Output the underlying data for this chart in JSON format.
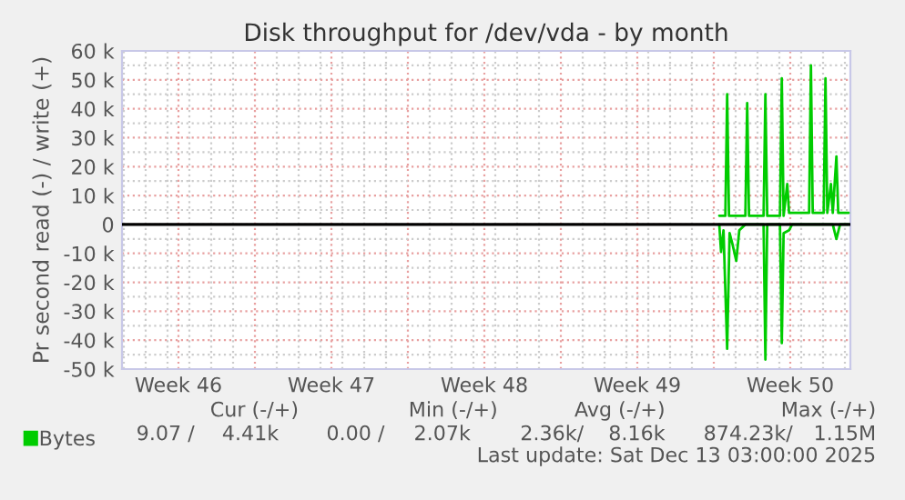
{
  "chart_data": {
    "type": "line",
    "title": "Disk throughput for /dev/vda - by month",
    "ylabel": "Pr second read (-) / write (+)",
    "series": [
      {
        "name": "Bytes",
        "color": "#00cc00",
        "x": [
          "2025-12-08T06:00",
          "2025-12-08T12:40",
          "2025-12-08T14:40",
          "2025-12-08T16:40",
          "2025-12-09T10:40",
          "2025-12-09T12:40",
          "2025-12-09T14:40",
          "2025-12-10T06:40",
          "2025-12-10T08:40",
          "2025-12-10T10:40",
          "2025-12-11T00:40",
          "2025-12-11T02:40",
          "2025-12-11T04:40",
          "2025-12-11T08:40",
          "2025-12-11T10:40",
          "2025-12-12T08:40",
          "2025-12-12T10:40",
          "2025-12-12T12:40",
          "2025-12-13T00:40",
          "2025-12-13T02:40",
          "2025-12-13T04:40",
          "2025-12-13T08:40",
          "2025-12-13T10:40",
          "2025-12-13T14:40",
          "2025-12-13T16:40",
          "2025-12-14T04:00"
        ],
        "values": [
          3000,
          3000,
          45000,
          3000,
          3000,
          42000,
          3000,
          3000,
          45000,
          3000,
          3000,
          50500,
          3000,
          14000,
          4000,
          4000,
          55000,
          4000,
          4000,
          50500,
          4000,
          14000,
          4000,
          23500,
          4000,
          4000
        ]
      },
      {
        "color": "#00cc00",
        "x": [
          "2025-12-08T06:00",
          "2025-12-08T08:00",
          "2025-12-08T10:40",
          "2025-12-08T14:40",
          "2025-12-08T17:20",
          "2025-12-08T20:40",
          "2025-12-09T00:40",
          "2025-12-09T04:00",
          "2025-12-09T10:40",
          "2025-12-10T06:40",
          "2025-12-10T08:40",
          "2025-12-10T10:40",
          "2025-12-11T00:40",
          "2025-12-11T02:40",
          "2025-12-11T04:40",
          "2025-12-11T10:40",
          "2025-12-11T14:00",
          "2025-12-13T10:40",
          "2025-12-13T14:40",
          "2025-12-13T18:40",
          "2025-12-14T04:00"
        ],
        "values": [
          0,
          -9500,
          -2000,
          -43000,
          -3000,
          -7000,
          -12600,
          -2000,
          0,
          0,
          -46700,
          0,
          0,
          -41000,
          -3000,
          -2000,
          0,
          0,
          -5000,
          0,
          0
        ]
      }
    ],
    "xlim": [
      "2025-11-10T22:00",
      "2025-12-14T06:00"
    ],
    "xticks": [
      {
        "value": "2025-11-13T12:00",
        "label": "Week 46"
      },
      {
        "value": "2025-11-20T12:00",
        "label": "Week 47"
      },
      {
        "value": "2025-11-27T12:00",
        "label": "Week 48"
      },
      {
        "value": "2025-12-04T12:00",
        "label": "Week 49"
      },
      {
        "value": "2025-12-11T12:00",
        "label": "Week 50"
      }
    ],
    "ylim": [
      -50000,
      60000
    ],
    "yticks": [
      {
        "value": -50000,
        "label": "-50 k"
      },
      {
        "value": -40000,
        "label": "-40 k"
      },
      {
        "value": -30000,
        "label": "-30 k"
      },
      {
        "value": -20000,
        "label": "-20 k"
      },
      {
        "value": -10000,
        "label": "-10 k"
      },
      0,
      {
        "value": 10000,
        "label": "10 k"
      },
      {
        "value": 20000,
        "label": "20 k"
      },
      {
        "value": 30000,
        "label": "30 k"
      },
      {
        "value": 40000,
        "label": "40 k"
      },
      {
        "value": 50000,
        "label": "50 k"
      },
      {
        "value": 60000,
        "label": "60 k"
      }
    ],
    "ref_lines": [
      {
        "axis": "y",
        "value": 0,
        "color": "#000000"
      }
    ],
    "grid": true,
    "legend": "bottom",
    "marker": "none",
    "line_style": "solid",
    "annotations": [
      "Cur (-/+)",
      "Min (-/+)",
      "Avg (-/+)",
      "Max (-/+)",
      "9.07 /",
      "4.41k",
      "0.00 /",
      "2.07k",
      "2.36k/",
      "8.16k",
      "874.23k/",
      "1.15M",
      "Last update: Sat Dec 13 03:00:00 2025"
    ]
  }
}
